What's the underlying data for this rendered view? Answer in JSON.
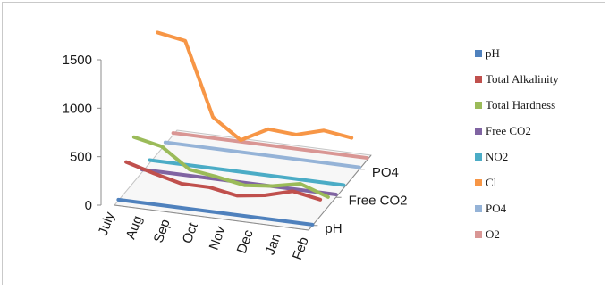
{
  "chart_data": {
    "type": "line",
    "subtype": "3d-line",
    "title": "",
    "categories": [
      "July",
      "Aug",
      "Sep",
      "Oct",
      "Nov",
      "Dec",
      "Jan",
      "Feb"
    ],
    "depth_labels": [
      "pH",
      "Free CO2",
      "PO4"
    ],
    "ylim": [
      0,
      1500
    ],
    "yticks": [
      0,
      500,
      1000,
      1500
    ],
    "grid": false,
    "legend_position": "right",
    "series": [
      {
        "name": "pH",
        "color": "#4f81bd",
        "values": [
          8,
          8,
          8,
          8,
          8,
          8,
          8,
          8
        ]
      },
      {
        "name": "Total Alkalinity",
        "color": "#c0504d",
        "values": [
          300,
          220,
          150,
          150,
          100,
          140,
          220,
          170
        ]
      },
      {
        "name": "Total Hardness",
        "color": "#9bbb59",
        "values": [
          460,
          400,
          200,
          160,
          110,
          140,
          200,
          100
        ]
      },
      {
        "name": "Free CO2",
        "color": "#8064a2",
        "values": [
          30,
          30,
          30,
          30,
          30,
          30,
          30,
          30
        ]
      },
      {
        "name": "NO2",
        "color": "#4bacc6",
        "values": [
          30,
          30,
          30,
          30,
          30,
          30,
          30,
          30
        ]
      },
      {
        "name": "Cl",
        "color": "#f79646",
        "values": [
          1250,
          1200,
          450,
          250,
          400,
          380,
          460,
          420
        ]
      },
      {
        "name": "PO4",
        "color": "#95b3d7",
        "values": [
          20,
          20,
          20,
          20,
          20,
          20,
          20,
          20
        ]
      },
      {
        "name": "O2",
        "color": "#d99694",
        "values": [
          20,
          20,
          20,
          20,
          20,
          20,
          20,
          20
        ]
      }
    ]
  }
}
